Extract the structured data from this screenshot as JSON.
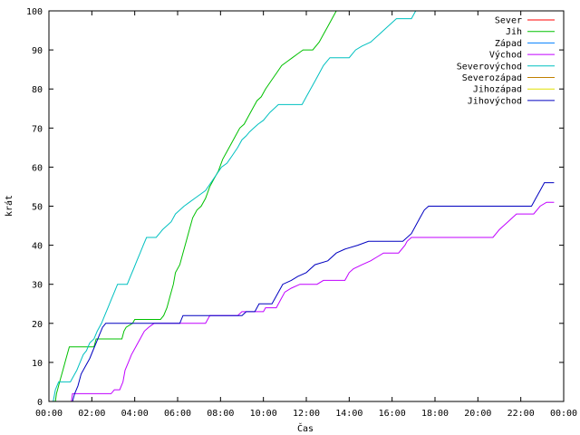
{
  "chart_data": {
    "type": "line",
    "title": "",
    "xlabel": "Čas",
    "ylabel": "krát",
    "xlim": [
      0,
      24
    ],
    "ylim": [
      0,
      100
    ],
    "grid": false,
    "legend_position": "top-right",
    "x_ticks": [
      {
        "value": 0,
        "label": "00:00"
      },
      {
        "value": 2,
        "label": "02:00"
      },
      {
        "value": 4,
        "label": "04:00"
      },
      {
        "value": 6,
        "label": "06:00"
      },
      {
        "value": 8,
        "label": "08:00"
      },
      {
        "value": 10,
        "label": "10:00"
      },
      {
        "value": 12,
        "label": "12:00"
      },
      {
        "value": 14,
        "label": "14:00"
      },
      {
        "value": 16,
        "label": "16:00"
      },
      {
        "value": 18,
        "label": "18:00"
      },
      {
        "value": 20,
        "label": "20:00"
      },
      {
        "value": 22,
        "label": "22:00"
      },
      {
        "value": 24,
        "label": "00:00"
      }
    ],
    "y_ticks": [
      0,
      10,
      20,
      30,
      40,
      50,
      60,
      70,
      80,
      90,
      100
    ],
    "series": [
      {
        "name": "Sever",
        "color": "#ff0000",
        "points": []
      },
      {
        "name": "Jih",
        "color": "#00c000",
        "points": [
          [
            0.3,
            0
          ],
          [
            0.35,
            2
          ],
          [
            0.4,
            3
          ],
          [
            0.5,
            5
          ],
          [
            0.65,
            8
          ],
          [
            0.8,
            11
          ],
          [
            0.95,
            14
          ],
          [
            2.1,
            14
          ],
          [
            2.15,
            15
          ],
          [
            2.2,
            16
          ],
          [
            3.4,
            16
          ],
          [
            3.5,
            18
          ],
          [
            3.6,
            19
          ],
          [
            3.9,
            20
          ],
          [
            4.0,
            21
          ],
          [
            5.2,
            21
          ],
          [
            5.35,
            22
          ],
          [
            5.5,
            24
          ],
          [
            5.65,
            27
          ],
          [
            5.8,
            30
          ],
          [
            5.9,
            33
          ],
          [
            6.1,
            35
          ],
          [
            6.25,
            38
          ],
          [
            6.4,
            41
          ],
          [
            6.55,
            44
          ],
          [
            6.7,
            47
          ],
          [
            6.9,
            49
          ],
          [
            7.1,
            50
          ],
          [
            7.3,
            52
          ],
          [
            7.5,
            55
          ],
          [
            7.7,
            57
          ],
          [
            7.9,
            59
          ],
          [
            8.1,
            62
          ],
          [
            8.3,
            64
          ],
          [
            8.5,
            66
          ],
          [
            8.7,
            68
          ],
          [
            8.9,
            70
          ],
          [
            9.1,
            71
          ],
          [
            9.3,
            73
          ],
          [
            9.5,
            75
          ],
          [
            9.7,
            77
          ],
          [
            9.9,
            78
          ],
          [
            10.1,
            80
          ],
          [
            10.35,
            82
          ],
          [
            10.6,
            84
          ],
          [
            10.85,
            86
          ],
          [
            11.1,
            87
          ],
          [
            11.35,
            88
          ],
          [
            11.6,
            89
          ],
          [
            11.85,
            90
          ],
          [
            12.3,
            90
          ],
          [
            12.6,
            92
          ],
          [
            12.8,
            94
          ],
          [
            13.0,
            96
          ],
          [
            13.2,
            98
          ],
          [
            13.4,
            100
          ]
        ]
      },
      {
        "name": "Západ",
        "color": "#0080ff",
        "points": []
      },
      {
        "name": "Východ",
        "color": "#c000ff",
        "points": [
          [
            1.05,
            0
          ],
          [
            1.1,
            2
          ],
          [
            2.9,
            2
          ],
          [
            3.05,
            3
          ],
          [
            3.3,
            3
          ],
          [
            3.45,
            5
          ],
          [
            3.55,
            8
          ],
          [
            3.7,
            10
          ],
          [
            3.85,
            12
          ],
          [
            4.05,
            14
          ],
          [
            4.25,
            16
          ],
          [
            4.45,
            18
          ],
          [
            4.65,
            19
          ],
          [
            4.9,
            20
          ],
          [
            7.3,
            20
          ],
          [
            7.5,
            22
          ],
          [
            8.8,
            22
          ],
          [
            9.0,
            23
          ],
          [
            10.0,
            23
          ],
          [
            10.1,
            24
          ],
          [
            10.6,
            24
          ],
          [
            10.8,
            26
          ],
          [
            11.0,
            28
          ],
          [
            11.3,
            29
          ],
          [
            11.7,
            30
          ],
          [
            12.5,
            30
          ],
          [
            12.8,
            31
          ],
          [
            13.8,
            31
          ],
          [
            14.0,
            33
          ],
          [
            14.2,
            34
          ],
          [
            14.6,
            35
          ],
          [
            15.0,
            36
          ],
          [
            15.3,
            37
          ],
          [
            15.6,
            38
          ],
          [
            16.3,
            38
          ],
          [
            16.6,
            40
          ],
          [
            16.7,
            41
          ],
          [
            16.9,
            42
          ],
          [
            20.7,
            42
          ],
          [
            21.0,
            44
          ],
          [
            21.4,
            46
          ],
          [
            21.8,
            48
          ],
          [
            22.6,
            48
          ],
          [
            22.9,
            50
          ],
          [
            23.2,
            51
          ],
          [
            23.55,
            51
          ]
        ]
      },
      {
        "name": "Severovýchod",
        "color": "#00c0c0",
        "points": [
          [
            0.2,
            0
          ],
          [
            0.3,
            3
          ],
          [
            0.45,
            5
          ],
          [
            1.0,
            5
          ],
          [
            1.1,
            6
          ],
          [
            1.3,
            8
          ],
          [
            1.45,
            10
          ],
          [
            1.6,
            12
          ],
          [
            1.75,
            13
          ],
          [
            1.9,
            15
          ],
          [
            2.1,
            16
          ],
          [
            2.25,
            18
          ],
          [
            2.45,
            20
          ],
          [
            2.6,
            22
          ],
          [
            2.75,
            24
          ],
          [
            2.9,
            26
          ],
          [
            3.05,
            28
          ],
          [
            3.2,
            30
          ],
          [
            3.65,
            30
          ],
          [
            3.8,
            32
          ],
          [
            3.95,
            34
          ],
          [
            4.1,
            36
          ],
          [
            4.25,
            38
          ],
          [
            4.4,
            40
          ],
          [
            4.55,
            42
          ],
          [
            5.0,
            42
          ],
          [
            5.15,
            43
          ],
          [
            5.3,
            44
          ],
          [
            5.5,
            45
          ],
          [
            5.7,
            46
          ],
          [
            5.9,
            48
          ],
          [
            6.1,
            49
          ],
          [
            6.3,
            50
          ],
          [
            6.55,
            51
          ],
          [
            6.8,
            52
          ],
          [
            7.05,
            53
          ],
          [
            7.3,
            54
          ],
          [
            7.55,
            56
          ],
          [
            7.8,
            58
          ],
          [
            8.05,
            60
          ],
          [
            8.3,
            61
          ],
          [
            8.55,
            63
          ],
          [
            8.8,
            65
          ],
          [
            9.0,
            67
          ],
          [
            9.2,
            68
          ],
          [
            9.35,
            69
          ],
          [
            9.55,
            70
          ],
          [
            9.75,
            71
          ],
          [
            10.0,
            72
          ],
          [
            10.15,
            73
          ],
          [
            10.3,
            74
          ],
          [
            10.5,
            75
          ],
          [
            10.7,
            76
          ],
          [
            11.8,
            76
          ],
          [
            12.0,
            78
          ],
          [
            12.2,
            80
          ],
          [
            12.4,
            82
          ],
          [
            12.6,
            84
          ],
          [
            12.8,
            86
          ],
          [
            13.1,
            88
          ],
          [
            14.0,
            88
          ],
          [
            14.3,
            90
          ],
          [
            14.6,
            91
          ],
          [
            15.0,
            92
          ],
          [
            15.4,
            94
          ],
          [
            15.8,
            96
          ],
          [
            16.2,
            98
          ],
          [
            16.9,
            98
          ],
          [
            17.1,
            100
          ]
        ]
      },
      {
        "name": "Severozápad",
        "color": "#c08000",
        "points": []
      },
      {
        "name": "Jihozápad",
        "color": "#e0e000",
        "points": []
      },
      {
        "name": "Jihovýchod",
        "color": "#0000c0",
        "points": [
          [
            1.1,
            0
          ],
          [
            1.2,
            2
          ],
          [
            1.35,
            4
          ],
          [
            1.5,
            7
          ],
          [
            1.7,
            9
          ],
          [
            1.9,
            11
          ],
          [
            2.05,
            13
          ],
          [
            2.2,
            15
          ],
          [
            2.35,
            17
          ],
          [
            2.5,
            19
          ],
          [
            2.65,
            20
          ],
          [
            6.1,
            20
          ],
          [
            6.25,
            22
          ],
          [
            7.3,
            22
          ],
          [
            9.0,
            22
          ],
          [
            9.2,
            23
          ],
          [
            9.6,
            23
          ],
          [
            9.8,
            25
          ],
          [
            10.4,
            25
          ],
          [
            10.6,
            27
          ],
          [
            10.9,
            30
          ],
          [
            11.3,
            31
          ],
          [
            11.6,
            32
          ],
          [
            12.0,
            33
          ],
          [
            12.4,
            35
          ],
          [
            13.0,
            36
          ],
          [
            13.4,
            38
          ],
          [
            13.8,
            39
          ],
          [
            14.4,
            40
          ],
          [
            14.9,
            41
          ],
          [
            16.5,
            41
          ],
          [
            16.9,
            43
          ],
          [
            17.1,
            45
          ],
          [
            17.3,
            47
          ],
          [
            17.5,
            49
          ],
          [
            17.7,
            50
          ],
          [
            22.5,
            50
          ],
          [
            22.7,
            52
          ],
          [
            22.9,
            54
          ],
          [
            23.1,
            56
          ],
          [
            23.55,
            56
          ]
        ]
      }
    ]
  }
}
